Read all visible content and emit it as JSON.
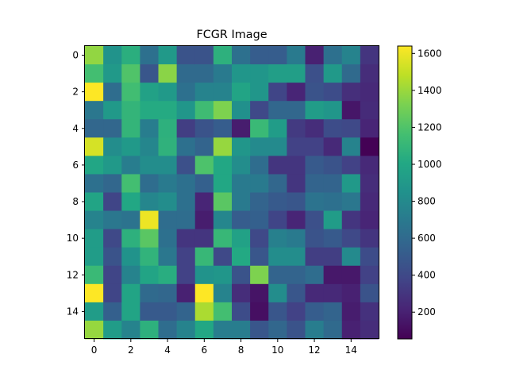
{
  "chart_data": {
    "type": "heatmap",
    "title": "FCGR Image",
    "xlabel": "",
    "ylabel": "",
    "colormap": "viridis",
    "vmin": 55,
    "vmax": 1640,
    "x_ticks": [
      0,
      2,
      4,
      6,
      8,
      10,
      12,
      14
    ],
    "y_ticks": [
      0,
      2,
      4,
      6,
      8,
      10,
      12,
      14
    ],
    "colorbar_ticks": [
      200,
      400,
      600,
      800,
      1000,
      1200,
      1400,
      1600
    ],
    "grid": false,
    "colorbar": "right",
    "values": [
      [
        1380,
        860,
        1050,
        640,
        900,
        460,
        460,
        1060,
        640,
        520,
        520,
        700,
        200,
        640,
        760,
        300
      ],
      [
        1160,
        900,
        1200,
        480,
        1360,
        600,
        600,
        700,
        880,
        880,
        940,
        940,
        440,
        900,
        600,
        260
      ],
      [
        1640,
        620,
        1150,
        960,
        900,
        640,
        760,
        760,
        980,
        880,
        380,
        220,
        460,
        420,
        270,
        240
      ],
      [
        680,
        900,
        1090,
        1020,
        1020,
        880,
        1140,
        1330,
        840,
        400,
        580,
        580,
        920,
        880,
        150,
        250
      ],
      [
        580,
        580,
        1090,
        720,
        1060,
        340,
        460,
        520,
        180,
        1120,
        920,
        320,
        260,
        420,
        400,
        220
      ],
      [
        1540,
        820,
        900,
        780,
        1070,
        640,
        560,
        1390,
        880,
        800,
        800,
        360,
        360,
        240,
        760,
        60
      ],
      [
        990,
        900,
        720,
        820,
        820,
        440,
        1190,
        1000,
        820,
        620,
        300,
        300,
        500,
        460,
        360,
        240
      ],
      [
        640,
        580,
        1160,
        620,
        700,
        640,
        540,
        1000,
        700,
        700,
        580,
        300,
        560,
        560,
        900,
        260
      ],
      [
        980,
        380,
        1000,
        780,
        820,
        640,
        220,
        1230,
        700,
        560,
        500,
        480,
        660,
        640,
        680,
        240
      ],
      [
        760,
        680,
        660,
        1600,
        620,
        620,
        180,
        780,
        520,
        540,
        380,
        220,
        440,
        920,
        300,
        220
      ],
      [
        920,
        400,
        1060,
        1230,
        640,
        300,
        300,
        1110,
        960,
        400,
        740,
        700,
        460,
        500,
        400,
        300
      ],
      [
        920,
        460,
        860,
        1080,
        680,
        360,
        1110,
        400,
        1010,
        480,
        820,
        820,
        340,
        340,
        800,
        420
      ],
      [
        1120,
        380,
        760,
        980,
        1040,
        360,
        860,
        880,
        460,
        1330,
        560,
        560,
        620,
        160,
        160,
        360
      ],
      [
        1640,
        380,
        980,
        600,
        580,
        200,
        1640,
        760,
        260,
        140,
        820,
        480,
        240,
        240,
        200,
        460
      ],
      [
        920,
        540,
        980,
        500,
        500,
        560,
        1440,
        1160,
        420,
        120,
        480,
        360,
        520,
        560,
        180,
        280
      ],
      [
        1390,
        920,
        760,
        1060,
        620,
        760,
        1000,
        720,
        720,
        480,
        580,
        460,
        720,
        600,
        200,
        260
      ]
    ]
  }
}
